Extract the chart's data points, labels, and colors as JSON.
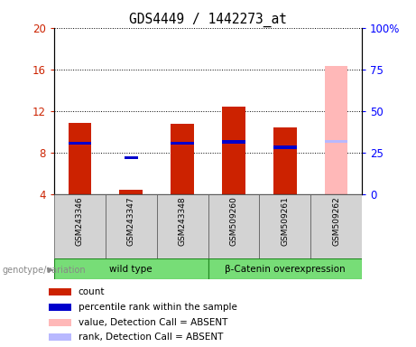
{
  "title": "GDS4449 / 1442273_at",
  "samples": [
    "GSM243346",
    "GSM243347",
    "GSM243348",
    "GSM509260",
    "GSM509261",
    "GSM509262"
  ],
  "count_values": [
    10.9,
    4.4,
    10.8,
    12.4,
    10.4,
    null
  ],
  "rank_values": [
    8.9,
    null,
    8.9,
    9.05,
    8.5,
    null
  ],
  "count_absent": [
    null,
    null,
    null,
    null,
    null,
    16.3
  ],
  "rank_absent_val": [
    null,
    null,
    null,
    null,
    null,
    9.1
  ],
  "percentile_blue_present": [
    8.9,
    null,
    8.9,
    9.05,
    8.5,
    null
  ],
  "percentile_blue_absent_only": [
    null,
    7.5,
    null,
    null,
    null,
    null
  ],
  "rank_absent_lightblue": [
    null,
    null,
    null,
    null,
    null,
    9.1
  ],
  "ylim_left": [
    4,
    20
  ],
  "ylim_right": [
    0,
    100
  ],
  "yticks_left": [
    4,
    8,
    12,
    16,
    20
  ],
  "yticks_right": [
    0,
    25,
    50,
    75,
    100
  ],
  "ytick_labels_left": [
    "4",
    "8",
    "12",
    "16",
    "20"
  ],
  "ytick_labels_right": [
    "0",
    "25",
    "50",
    "75",
    "100%"
  ],
  "bar_color_red": "#cc2200",
  "bar_color_blue": "#0000cc",
  "bar_color_pink": "#ffb8b8",
  "bar_color_lightblue": "#b8b8ff",
  "bg_color": "#d3d3d3",
  "group_color": "#77dd77",
  "group_info": [
    {
      "label": "wild type",
      "start": 0,
      "end": 2
    },
    {
      "label": "β-Catenin overexpression",
      "start": 3,
      "end": 5
    }
  ],
  "legend_items": [
    {
      "color": "#cc2200",
      "label": "count"
    },
    {
      "color": "#0000cc",
      "label": "percentile rank within the sample"
    },
    {
      "color": "#ffb8b8",
      "label": "value, Detection Call = ABSENT"
    },
    {
      "color": "#b8b8ff",
      "label": "rank, Detection Call = ABSENT"
    }
  ]
}
